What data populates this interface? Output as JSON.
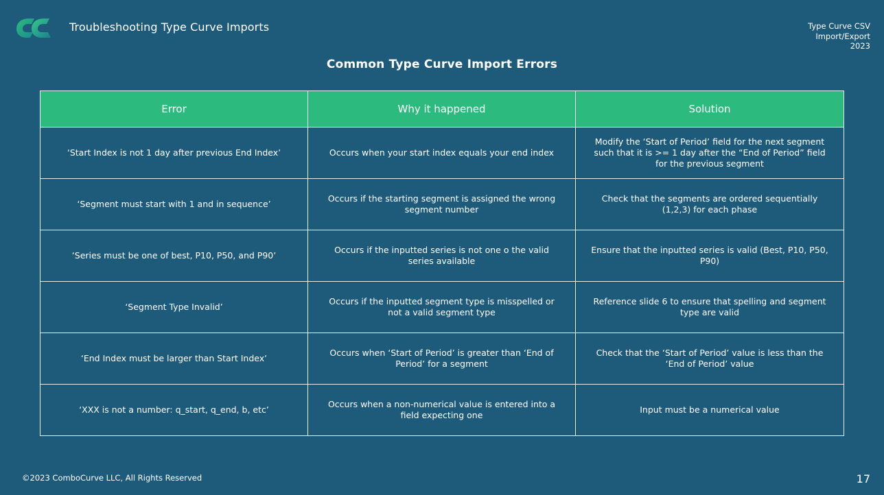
{
  "header": {
    "title": "Troubleshooting Type Curve Imports",
    "info_lines": [
      "Type Curve CSV",
      "Import/Export",
      "2023"
    ]
  },
  "slide": {
    "title": "Common Type Curve Import Errors"
  },
  "table": {
    "columns": [
      "Error",
      "Why it happened",
      "Solution"
    ],
    "rows": [
      {
        "error": "‘Start Index is not 1 day after previous End Index’",
        "why": "Occurs when your start index equals your end index",
        "solution": "Modify the ‘Start of Period’ field for the next segment such that it is >= 1 day after the “End of Period” field for the previous segment"
      },
      {
        "error": "‘Segment must start with 1 and in sequence’",
        "why": "Occurs if the starting segment is assigned the wrong segment number",
        "solution": "Check that the segments are ordered sequentially (1,2,3) for each phase"
      },
      {
        "error": "‘Series must be one of best, P10, P50, and P90’",
        "why": "Occurs if the inputted series is not one o the valid series available",
        "solution": "Ensure that the inputted series is valid (Best, P10, P50, P90)"
      },
      {
        "error": "‘Segment Type Invalid’",
        "why": "Occurs if the inputted segment type is misspelled or not a valid segment type",
        "solution": "Reference slide 6 to ensure that spelling and segment type are valid"
      },
      {
        "error": "‘End Index must be larger than Start Index’",
        "why": "Occurs when ‘Start of Period’ is greater than ‘End of Period’ for a segment",
        "solution": "Check that the ‘Start of Period’ value is less than the ‘End of Period’ value"
      },
      {
        "error": "‘XXX is not a number: q_start, q_end, b, etc’",
        "why": "Occurs when a non-numerical value is entered into a field expecting one",
        "solution": "Input must be a numerical value"
      }
    ]
  },
  "footer": {
    "copyright": "©2023 ComboCurve LLC, All Rights Reserved",
    "page_number": "17"
  },
  "colors": {
    "background": "#1e5a7a",
    "header_row": "#2dba7e",
    "logo_gradient_start": "#2dba7e",
    "logo_gradient_end": "#1a7f8e"
  },
  "icons": {
    "logo": "combocurve-logo"
  }
}
